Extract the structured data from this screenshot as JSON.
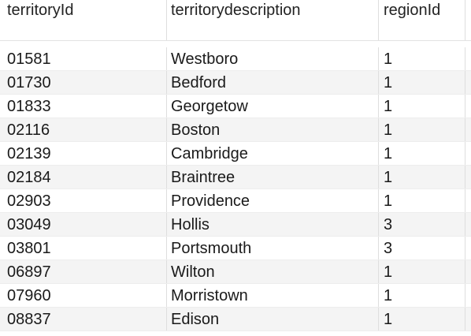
{
  "table": {
    "columns": [
      "territoryId",
      "territorydescription",
      "regionId"
    ],
    "rows": [
      {
        "territoryId": "01581",
        "territorydescription": "Westboro",
        "regionId": "1"
      },
      {
        "territoryId": "01730",
        "territorydescription": "Bedford",
        "regionId": "1"
      },
      {
        "territoryId": "01833",
        "territorydescription": "Georgetow",
        "regionId": "1"
      },
      {
        "territoryId": "02116",
        "territorydescription": "Boston",
        "regionId": "1"
      },
      {
        "territoryId": "02139",
        "territorydescription": "Cambridge",
        "regionId": "1"
      },
      {
        "territoryId": "02184",
        "territorydescription": "Braintree",
        "regionId": "1"
      },
      {
        "territoryId": "02903",
        "territorydescription": "Providence",
        "regionId": "1"
      },
      {
        "territoryId": "03049",
        "territorydescription": "Hollis",
        "regionId": "3"
      },
      {
        "territoryId": "03801",
        "territorydescription": "Portsmouth",
        "regionId": "3"
      },
      {
        "territoryId": "06897",
        "territorydescription": "Wilton",
        "regionId": "1"
      },
      {
        "territoryId": "07960",
        "territorydescription": "Morristown",
        "regionId": "1"
      },
      {
        "territoryId": "08837",
        "territorydescription": "Edison",
        "regionId": "1"
      }
    ]
  }
}
